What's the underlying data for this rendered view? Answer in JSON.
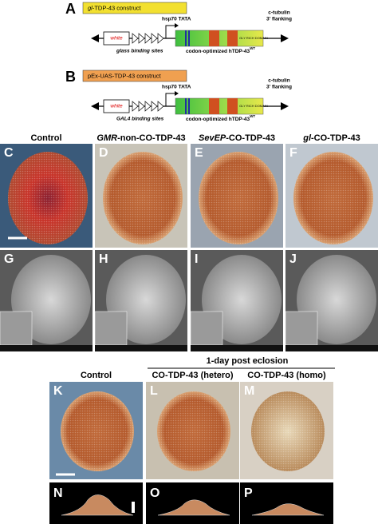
{
  "constructs": [
    {
      "letter": "A",
      "title_italic": "gl",
      "title_rest": "-TDP-43 construct",
      "promoter": "hsp70 TATA",
      "marker": "white",
      "sites": "glass binding sites",
      "gene": "codon-optimized hTDP-43",
      "gene_sup": "WT",
      "domain": "GLY RICH DOMAIN",
      "flank1": "c-tubulin",
      "flank2": "3' flanking"
    },
    {
      "letter": "B",
      "title_italic": "",
      "title_rest": "pEx-UAS-TDP-43 construct",
      "promoter": "hsp70 TATA",
      "marker": "white",
      "sites": "GAL4 binding sites",
      "gene": "codon-optimized hTDP-43",
      "gene_sup": "WT",
      "domain": "GLY RICH DOMAIN",
      "flank1": "c-tubulin",
      "flank2": "3' flanking"
    }
  ],
  "columns": [
    {
      "italic": "",
      "rest": "Control"
    },
    {
      "italic": "GMR",
      "rest": "-non-CO-TDP-43"
    },
    {
      "italic": "SevEP",
      "rest": "-CO-TDP-43"
    },
    {
      "italic": "gl",
      "rest": "-CO-TDP-43"
    }
  ],
  "row_color": [
    "C",
    "D",
    "E",
    "F"
  ],
  "row_sem": [
    "G",
    "H",
    "I",
    "J"
  ],
  "eclosion": {
    "header": "1-day post eclosion",
    "columns": [
      "Control",
      "CO-TDP-43 (hetero)",
      "CO-TDP-43 (homo)"
    ],
    "row_eye": [
      "K",
      "L",
      "M"
    ],
    "row_profile": [
      "N",
      "O",
      "P"
    ]
  }
}
